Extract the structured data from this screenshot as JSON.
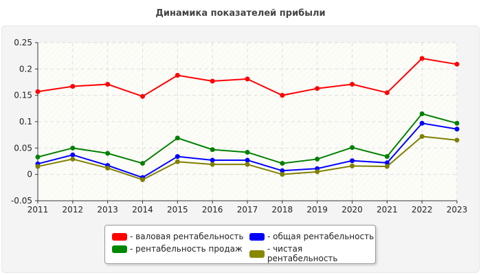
{
  "chart_data": {
    "type": "line",
    "title": "Динамика показателей прибыли",
    "xlabel": "",
    "ylabel": "",
    "categories": [
      "2011",
      "2012",
      "2013",
      "2014",
      "2015",
      "2016",
      "2017",
      "2018",
      "2019",
      "2020",
      "2021",
      "2022",
      "2023"
    ],
    "ylim": [
      -0.05,
      0.25
    ],
    "yticks": [
      "-0.05",
      "0",
      "0.05",
      "0.1",
      "0.15",
      "0.2",
      "0.25"
    ],
    "grid": true,
    "legend_position": "bottom",
    "series": [
      {
        "name": "- валовая рентабельность",
        "color": "#ff0000",
        "values": [
          0.157,
          0.167,
          0.171,
          0.148,
          0.188,
          0.177,
          0.181,
          0.15,
          0.163,
          0.171,
          0.155,
          0.22,
          0.209
        ]
      },
      {
        "name": "- общая рентабельность",
        "color": "#0000ff",
        "values": [
          0.02,
          0.037,
          0.017,
          -0.006,
          0.034,
          0.027,
          0.027,
          0.007,
          0.011,
          0.026,
          0.022,
          0.097,
          0.086
        ]
      },
      {
        "name": "- рентабельность продаж",
        "color": "#008000",
        "values": [
          0.033,
          0.05,
          0.04,
          0.021,
          0.069,
          0.047,
          0.042,
          0.021,
          0.029,
          0.051,
          0.034,
          0.115,
          0.097
        ]
      },
      {
        "name": "- чистая рентабельность",
        "color": "#808000",
        "values": [
          0.015,
          0.029,
          0.012,
          -0.01,
          0.024,
          0.019,
          0.019,
          0.0,
          0.005,
          0.016,
          0.015,
          0.072,
          0.065
        ]
      }
    ]
  }
}
